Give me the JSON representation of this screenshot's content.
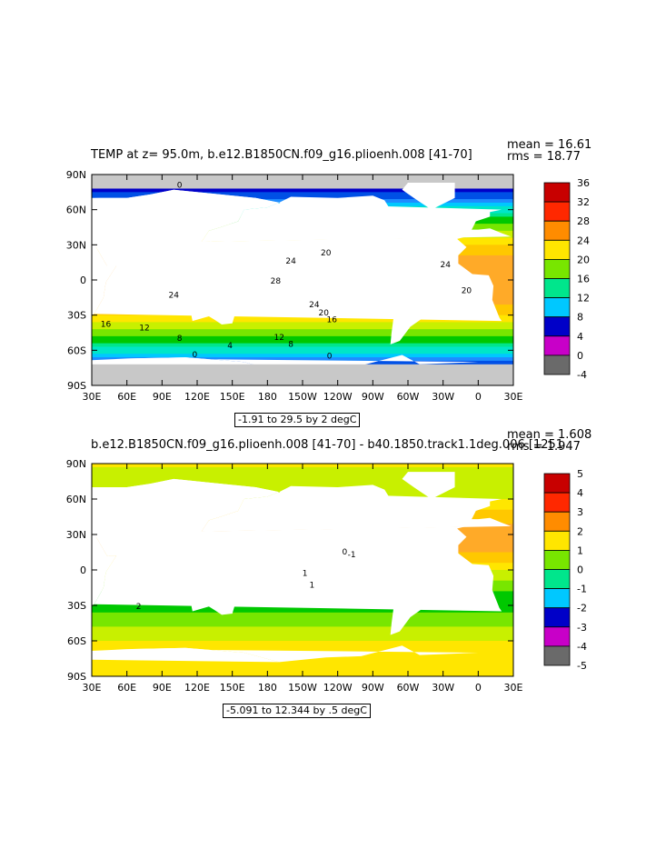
{
  "palette": {
    "temp": [
      "#6a6a6a",
      "#c8c8c8",
      "#c800c8",
      "#8c00c8",
      "#0000c8",
      "#0050e6",
      "#1e8cff",
      "#00c8ff",
      "#00e6c8",
      "#00e68c",
      "#00c800",
      "#78e600",
      "#c8f000",
      "#ffe600",
      "#ffc800",
      "#ffaa28",
      "#ff8c00",
      "#ff6400",
      "#ff2800",
      "#e60000",
      "#c80000"
    ],
    "diff": [
      "#6a6a6a",
      "#c8c8c8",
      "#c800c8",
      "#8c00c8",
      "#0000c8",
      "#0050e6",
      "#1e8cff",
      "#00c8ff",
      "#00e6c8",
      "#00e68c",
      "#00c800",
      "#78e600",
      "#c8f000",
      "#ffe600",
      "#ffc800",
      "#ffaa28",
      "#ff8c00",
      "#ff6400",
      "#ff2800",
      "#e60000",
      "#c80000"
    ],
    "land": "#ffffff",
    "ice": "#c8c8c8"
  },
  "chart_data": [
    {
      "type": "heatmap",
      "title": "TEMP at z=  95.0m, b.e12.B1850CN.f09_g16.plioenh.008 [41-70]",
      "stats": {
        "mean": "mean = 16.61",
        "rms": "rms = 18.77"
      },
      "xlabel": "",
      "ylabel": "",
      "x_ticks": [
        "30E",
        "60E",
        "90E",
        "120E",
        "150E",
        "180",
        "150W",
        "120W",
        "90W",
        "60W",
        "30W",
        "0",
        "30E"
      ],
      "y_ticks": [
        "90N",
        "60N",
        "30N",
        "0",
        "30S",
        "60S",
        "90S"
      ],
      "range_label": "-1.91 to 29.5 by 2 degC",
      "colorbar_labels": [
        "36",
        "32",
        "28",
        "24",
        "20",
        "16",
        "12",
        "8",
        "4",
        "0",
        "-4"
      ],
      "colorbar_range": [
        -4,
        36
      ],
      "contour_labels": [
        {
          "text": "24",
          "lon": 200,
          "lat": 17
        },
        {
          "text": "28",
          "lon": 187,
          "lat": 0
        },
        {
          "text": "24",
          "lon": 220,
          "lat": -20
        },
        {
          "text": "20",
          "lon": 228,
          "lat": -27
        },
        {
          "text": "16",
          "lon": 235,
          "lat": -33
        },
        {
          "text": "20",
          "lon": 230,
          "lat": 24
        },
        {
          "text": "24",
          "lon": 100,
          "lat": -12
        },
        {
          "text": "16",
          "lon": 42,
          "lat": -37
        },
        {
          "text": "12",
          "lon": 75,
          "lat": -40
        },
        {
          "text": "8",
          "lon": 105,
          "lat": -49
        },
        {
          "text": "4",
          "lon": 148,
          "lat": -55
        },
        {
          "text": "0",
          "lon": 118,
          "lat": -63
        },
        {
          "text": "24",
          "lon": 332,
          "lat": 14
        },
        {
          "text": "20",
          "lon": 350,
          "lat": -8
        },
        {
          "text": "12",
          "lon": 190,
          "lat": -48
        },
        {
          "text": "8",
          "lon": 200,
          "lat": -54
        },
        {
          "text": "0",
          "lon": 233,
          "lat": -64
        },
        {
          "text": "0",
          "lon": 105,
          "lat": 82
        }
      ]
    },
    {
      "type": "heatmap",
      "title": "b.e12.B1850CN.f09_g16.plioenh.008 [41-70] - b40.1850.track1.1deg.006 [1251",
      "stats": {
        "mean": "mean = 1.608",
        "rms": "rms = 1.947"
      },
      "xlabel": "",
      "ylabel": "",
      "x_ticks": [
        "30E",
        "60E",
        "90E",
        "120E",
        "150E",
        "180",
        "150W",
        "120W",
        "90W",
        "60W",
        "30W",
        "0",
        "30E"
      ],
      "y_ticks": [
        "90N",
        "60N",
        "30N",
        "0",
        "30S",
        "60S",
        "90S"
      ],
      "range_label": "-5.091 to 12.344 by .5 degC",
      "colorbar_labels": [
        "5",
        "4",
        "3",
        "2",
        "1",
        "0",
        "-1",
        "-2",
        "-3",
        "-4",
        "-5"
      ],
      "colorbar_range": [
        -5,
        5
      ],
      "contour_labels": [
        {
          "text": "0",
          "lon": 246,
          "lat": 16
        },
        {
          "text": "-1",
          "lon": 252,
          "lat": 14
        },
        {
          "text": "1",
          "lon": 212,
          "lat": -2
        },
        {
          "text": "2",
          "lon": 70,
          "lat": -30
        },
        {
          "text": "1",
          "lon": 218,
          "lat": -12
        }
      ]
    }
  ]
}
